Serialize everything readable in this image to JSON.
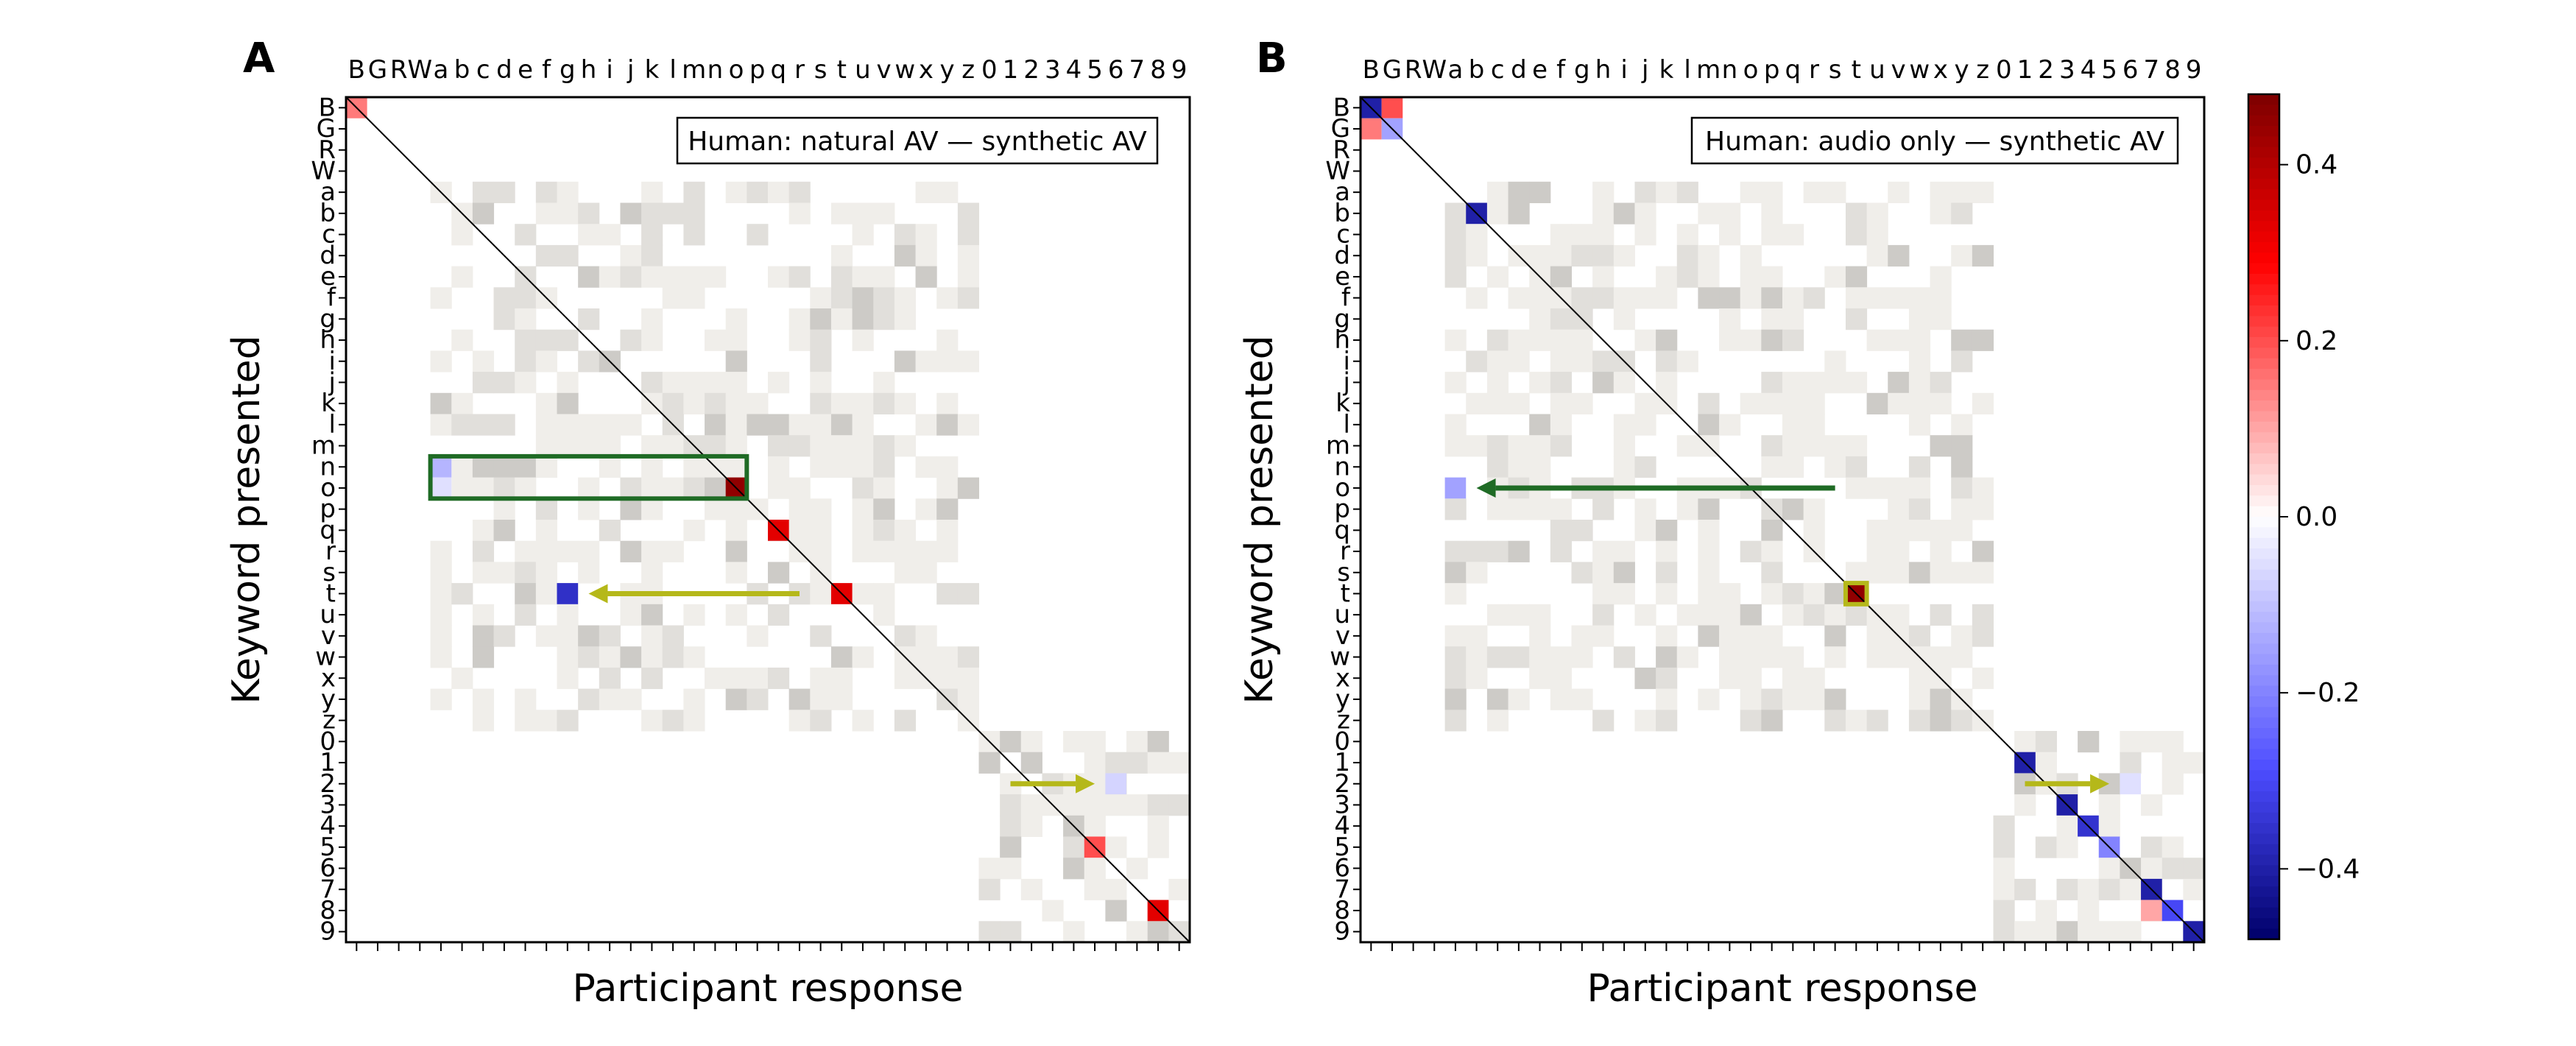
{
  "chart_data": [
    {
      "type": "heatmap",
      "panel": "A",
      "annotation": "Human: natural AV — synthetic AV",
      "xlabel": "Participant response",
      "ylabel": "Keyword presented",
      "categories": [
        "B",
        "G",
        "R",
        "W",
        "a",
        "b",
        "c",
        "d",
        "e",
        "f",
        "g",
        "h",
        "i",
        "j",
        "k",
        "l",
        "m",
        "n",
        "o",
        "p",
        "q",
        "r",
        "s",
        "t",
        "u",
        "v",
        "w",
        "x",
        "y",
        "z",
        "0",
        "1",
        "2",
        "3",
        "4",
        "5",
        "6",
        "7",
        "8",
        "9"
      ],
      "cells": [
        {
          "row": "B",
          "col": "B",
          "value": 0.15
        },
        {
          "row": "n",
          "col": "a",
          "value": -0.12
        },
        {
          "row": "o",
          "col": "a",
          "value": -0.05
        },
        {
          "row": "o",
          "col": "o",
          "value": 0.45
        },
        {
          "row": "q",
          "col": "q",
          "value": 0.33
        },
        {
          "row": "t",
          "col": "t",
          "value": 0.33
        },
        {
          "row": "t",
          "col": "g",
          "value": -0.36
        },
        {
          "row": "2",
          "col": "6",
          "value": -0.07
        },
        {
          "row": "5",
          "col": "5",
          "value": 0.2
        },
        {
          "row": "8",
          "col": "8",
          "value": 0.33
        }
      ],
      "background": "small confusions (|value| ≲ 0.02) in letter and digit blocks",
      "highlights": [
        {
          "type": "box",
          "color": "#1f6b25",
          "rows": [
            "n",
            "o"
          ],
          "cols": [
            "a",
            "o"
          ]
        },
        {
          "type": "arrow",
          "color": "#b5b81a",
          "from": {
            "row": "t",
            "col": "r"
          },
          "to": {
            "row": "t",
            "col": "h"
          }
        },
        {
          "type": "arrow",
          "color": "#b5b81a",
          "from": {
            "row": "2",
            "col": "1"
          },
          "to": {
            "row": "2",
            "col": "5"
          }
        }
      ]
    },
    {
      "type": "heatmap",
      "panel": "B",
      "annotation": "Human: audio only — synthetic AV",
      "xlabel": "Participant response",
      "ylabel": "Keyword presented",
      "categories": [
        "B",
        "G",
        "R",
        "W",
        "a",
        "b",
        "c",
        "d",
        "e",
        "f",
        "g",
        "h",
        "i",
        "j",
        "k",
        "l",
        "m",
        "n",
        "o",
        "p",
        "q",
        "r",
        "s",
        "t",
        "u",
        "v",
        "w",
        "x",
        "y",
        "z",
        "0",
        "1",
        "2",
        "3",
        "4",
        "5",
        "6",
        "7",
        "8",
        "9"
      ],
      "cells": [
        {
          "row": "B",
          "col": "B",
          "value": -0.4
        },
        {
          "row": "B",
          "col": "G",
          "value": 0.2
        },
        {
          "row": "G",
          "col": "B",
          "value": 0.15
        },
        {
          "row": "G",
          "col": "G",
          "value": -0.15
        },
        {
          "row": "b",
          "col": "b",
          "value": -0.4
        },
        {
          "row": "o",
          "col": "a",
          "value": -0.15
        },
        {
          "row": "t",
          "col": "t",
          "value": 0.45
        },
        {
          "row": "1",
          "col": "1",
          "value": -0.4
        },
        {
          "row": "2",
          "col": "6",
          "value": -0.05
        },
        {
          "row": "3",
          "col": "3",
          "value": -0.4
        },
        {
          "row": "4",
          "col": "4",
          "value": -0.35
        },
        {
          "row": "5",
          "col": "5",
          "value": -0.2
        },
        {
          "row": "7",
          "col": "7",
          "value": -0.4
        },
        {
          "row": "8",
          "col": "7",
          "value": 0.1
        },
        {
          "row": "8",
          "col": "8",
          "value": -0.3
        },
        {
          "row": "9",
          "col": "9",
          "value": -0.4
        }
      ],
      "background": "small confusions (|value| ≲ 0.02) in letter and digit blocks",
      "highlights": [
        {
          "type": "arrow",
          "color": "#1f6b25",
          "from": {
            "row": "o",
            "col": "s"
          },
          "to": {
            "row": "o",
            "col": "b"
          }
        },
        {
          "type": "box",
          "color": "#b5b81a",
          "rows": [
            "t"
          ],
          "cols": [
            "t"
          ]
        },
        {
          "type": "arrow",
          "color": "#b5b81a",
          "from": {
            "row": "2",
            "col": "1"
          },
          "to": {
            "row": "2",
            "col": "5"
          }
        }
      ]
    }
  ],
  "colorbar": {
    "range": [
      -0.48,
      0.48
    ],
    "ticks": [
      0.4,
      0.2,
      0.0,
      -0.2,
      -0.4
    ],
    "tick_labels": [
      "0.4",
      "0.2",
      "0.0",
      "−0.2",
      "−0.4"
    ],
    "colormap": "seismic"
  }
}
